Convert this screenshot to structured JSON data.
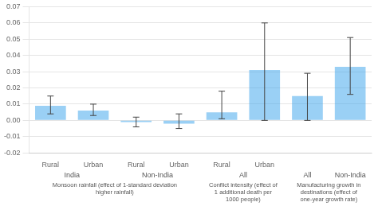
{
  "chart_data": {
    "type": "bar",
    "categories": [
      "Rural",
      "Urban",
      "Rural",
      "Urban",
      "Rural",
      "Urban",
      null,
      null
    ],
    "values": [
      0.009,
      0.006,
      -0.001,
      -0.002,
      0.005,
      0.031,
      0.015,
      0.033
    ],
    "err_low": [
      0.005,
      0.003,
      0.003,
      0.003,
      0.004,
      0.031,
      0.015,
      0.017
    ],
    "err_high": [
      0.006,
      0.004,
      0.003,
      0.006,
      0.013,
      0.029,
      0.014,
      0.018
    ],
    "group_labels": [
      {
        "label": "India",
        "span": 2
      },
      {
        "label": "Non-India",
        "span": 2
      },
      {
        "label": "All",
        "span": 2
      },
      {
        "label": "All",
        "span": 1
      },
      {
        "label": "Non-India",
        "span": 1
      }
    ],
    "section_labels": [
      {
        "label": "Monsoon rainfall (effect of 1-standard deviation\nhigher rainfall)",
        "span": 4
      },
      {
        "label": "Conflict intensity (effect of\n1 additional death per\n1000 people)",
        "span": 2
      },
      {
        "label": "Manufacturing growth in\ndestinations (effect of\none-year growth rate)",
        "span": 2
      }
    ],
    "ylim": [
      -0.02,
      0.07
    ],
    "yticks": [
      -0.02,
      -0.01,
      {
        "value": 0.0,
        "label": "0.00"
      },
      0.01,
      0.02,
      0.03,
      0.04,
      0.05,
      0.06,
      0.07
    ],
    "grid": true
  }
}
